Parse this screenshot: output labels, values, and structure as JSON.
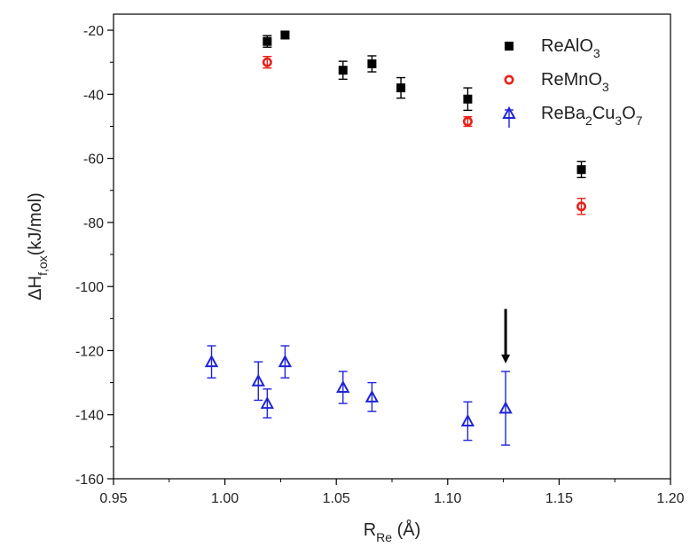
{
  "chart_data": {
    "type": "scatter",
    "xlabel": {
      "main": "R",
      "sub": "Re",
      "suffix": " (Å)"
    },
    "ylabel": {
      "main": "ΔH",
      "sub": "f,ox",
      "suffix": "(kJ/mol)"
    },
    "xlim": [
      0.95,
      1.2
    ],
    "ylim": [
      -160,
      -15
    ],
    "xticks": [
      "0.95",
      "1.00",
      "1.05",
      "1.10",
      "1.15",
      "1.20"
    ],
    "yticks": [
      "-20",
      "-40",
      "-60",
      "-80",
      "-100",
      "-120",
      "-140",
      "-160"
    ],
    "grid": false,
    "legend_position": "top-right",
    "series": [
      {
        "name": {
          "main": "ReAlO",
          "sub": "3"
        },
        "marker": "filled-square",
        "color": "#000000",
        "points": [
          {
            "x": 1.019,
            "y": -23.5,
            "err": 1.8
          },
          {
            "x": 1.027,
            "y": -21.5,
            "err": 1.0
          },
          {
            "x": 1.053,
            "y": -32.5,
            "err": 2.8
          },
          {
            "x": 1.066,
            "y": -30.5,
            "err": 2.5
          },
          {
            "x": 1.079,
            "y": -38.0,
            "err": 3.2
          },
          {
            "x": 1.109,
            "y": -41.5,
            "err": 3.5
          },
          {
            "x": 1.16,
            "y": -63.5,
            "err": 2.5
          }
        ]
      },
      {
        "name": {
          "main": "ReMnO",
          "sub": "3"
        },
        "marker": "open-circle",
        "color": "#e8221b",
        "points": [
          {
            "x": 1.019,
            "y": -30.0,
            "err": 1.8
          },
          {
            "x": 1.109,
            "y": -48.5,
            "err": 1.5
          },
          {
            "x": 1.16,
            "y": -75.0,
            "err": 2.5
          }
        ]
      },
      {
        "name": {
          "main": "ReBa",
          "sub1": "2",
          "mid": "Cu",
          "sub2": "3",
          "mid2": "O",
          "sub3": "7"
        },
        "marker": "open-triangle",
        "color": "#1f25d6",
        "points": [
          {
            "x": 0.994,
            "y": -123.5,
            "err": 5.0
          },
          {
            "x": 1.015,
            "y": -129.5,
            "err": 6.0
          },
          {
            "x": 1.019,
            "y": -136.5,
            "err": 4.5
          },
          {
            "x": 1.027,
            "y": -123.5,
            "err": 5.0
          },
          {
            "x": 1.053,
            "y": -131.5,
            "err": 5.0
          },
          {
            "x": 1.066,
            "y": -134.5,
            "err": 4.5
          },
          {
            "x": 1.109,
            "y": -142.0,
            "err": 6.0
          },
          {
            "x": 1.126,
            "y": -138.0,
            "err": 11.5
          }
        ]
      }
    ],
    "annotations": [
      {
        "type": "arrow-down",
        "x": 1.126,
        "y_from": -107,
        "y_to": -124
      }
    ]
  }
}
